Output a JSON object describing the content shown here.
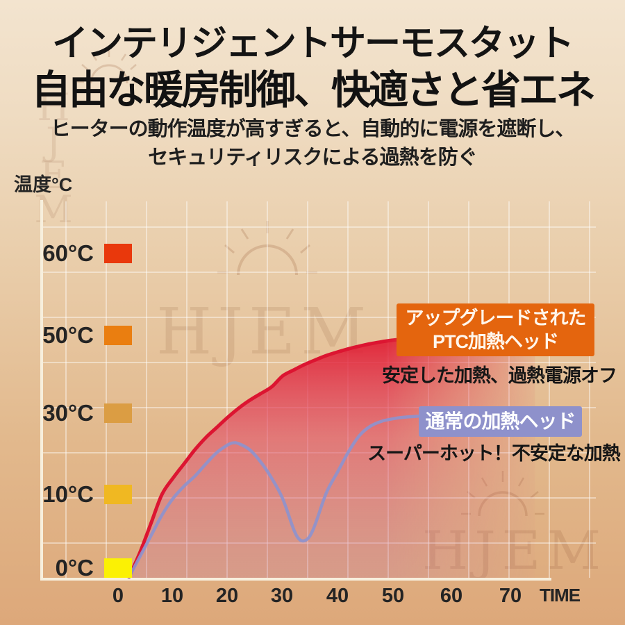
{
  "header": {
    "title_line1": "インテリジェントサーモスタット",
    "title_line2": "自由な暖房制御、快適さと省エネ",
    "description_line1": "ヒーターの動作温度が高すぎると、自動的に電源を遮断し、",
    "description_line2": "セキュリティリスクによる過熱を防ぐ"
  },
  "watermark": {
    "brand": "HJEM"
  },
  "chart": {
    "y_axis_title": "温度°C",
    "x_axis_title": "TIME",
    "y_labels": [
      {
        "text": "60°C",
        "swatch_color": "#E9380C"
      },
      {
        "text": "50°C",
        "swatch_color": "#EA7E10"
      },
      {
        "text": "30°C",
        "swatch_color": "#DB9D43"
      },
      {
        "text": "10°C",
        "swatch_color": "#F0B822"
      },
      {
        "text": "0°C",
        "swatch_color": "#FBF104"
      }
    ],
    "x_ticks": [
      "0",
      "10",
      "20",
      "30",
      "40",
      "50",
      "60",
      "70"
    ],
    "annotations": {
      "ptc_label_line1": "アップグレードされた",
      "ptc_label_line2": "PTC加熱ヘッド",
      "ptc_label_bg": "#E4650E",
      "ptc_caption": "安定した加熱、過熱電源オフ",
      "normal_label": "通常の加熱ヘッド",
      "normal_label_bg": "#8E91CB",
      "normal_caption": "スーパーホット！不安定な加熱"
    },
    "colors": {
      "ptc_line": "#DC1531",
      "normal_line": "#8E93CD",
      "axis": "#F7EFDD"
    }
  },
  "chart_data": {
    "type": "line",
    "title": "インテリジェントサーモスタット 温度比較",
    "xlabel": "TIME",
    "ylabel": "温度°C",
    "x_ticks": [
      0,
      10,
      20,
      30,
      40,
      50,
      60,
      70
    ],
    "y_ticks": [
      0,
      10,
      30,
      50,
      60
    ],
    "xlim": [
      0,
      80
    ],
    "ylim": [
      0,
      65
    ],
    "grid": true,
    "legend_position": "inline-labels",
    "series": [
      {
        "name": "アップグレードされたPTC加熱ヘッド",
        "style": "area",
        "color": "#DC1531",
        "x": [
          2,
          4,
          6,
          8,
          10,
          12,
          14,
          16,
          18,
          20,
          22,
          24,
          26,
          28,
          30,
          32,
          34,
          36,
          38,
          40,
          42,
          44,
          46,
          48,
          50,
          52,
          54,
          56,
          58,
          60,
          64,
          68,
          72,
          76
        ],
        "values": [
          0,
          3,
          6.5,
          10,
          14,
          17.5,
          21,
          24,
          26.5,
          29,
          31.3,
          33.3,
          35,
          36.7,
          39.5,
          41,
          42.4,
          43.6,
          44.7,
          45.6,
          46.4,
          47.1,
          47.7,
          48.2,
          48.6,
          48.9,
          49.1,
          49.3,
          49.4,
          49.5,
          49.6,
          49.7,
          49.7,
          49.7
        ]
      },
      {
        "name": "通常の加熱ヘッド",
        "style": "line",
        "color": "#8E93CD",
        "x": [
          2,
          4,
          6,
          8,
          10,
          12,
          14,
          16,
          18,
          20,
          21,
          22,
          24,
          26,
          28,
          30,
          32,
          33,
          34,
          35,
          36,
          38,
          40,
          42,
          44,
          46,
          48,
          50,
          52,
          54,
          55
        ],
        "values": [
          0,
          2.5,
          5,
          7.5,
          9.5,
          12,
          14.5,
          17.5,
          20.3,
          22.2,
          22.7,
          22.5,
          21,
          18,
          14,
          9.5,
          5.8,
          4.6,
          4.4,
          5,
          6.5,
          10.5,
          15.5,
          20.5,
          24.5,
          26.8,
          28,
          28.6,
          29,
          29.2,
          29.3
        ]
      }
    ]
  }
}
